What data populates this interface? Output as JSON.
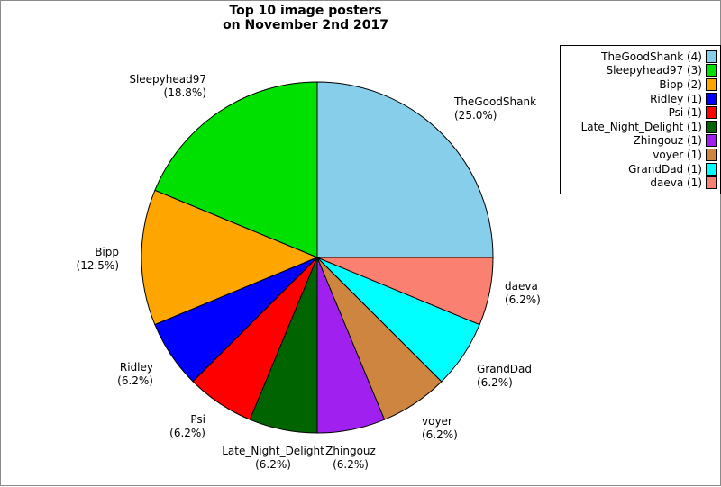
{
  "figure": {
    "title_line1": "Top 10 image posters",
    "title_line2": "on November 2nd 2017",
    "background_color": "#ffffff",
    "border_color": "#8a8a8a"
  },
  "chart_data": {
    "type": "pie",
    "title": "Top 10 image posters on November 2nd 2017",
    "total": 16,
    "start_angle_deg": 0,
    "direction": "counterclockwise",
    "legend_position": "upper right",
    "edge_color": "#000000",
    "slices": [
      {
        "name": "TheGoodShank",
        "count": 4,
        "percent": 25.0,
        "label": "TheGoodShank",
        "pct_label": "(25.0%)",
        "legend_label": "TheGoodShank (4)",
        "color": "#87CEEB"
      },
      {
        "name": "Sleepyhead97",
        "count": 3,
        "percent": 18.8,
        "label": "Sleepyhead97",
        "pct_label": "(18.8%)",
        "legend_label": "Sleepyhead97 (3)",
        "color": "#00E000"
      },
      {
        "name": "Bipp",
        "count": 2,
        "percent": 12.5,
        "label": "Bipp",
        "pct_label": "(12.5%)",
        "legend_label": "Bipp (2)",
        "color": "#FFA500"
      },
      {
        "name": "Ridley",
        "count": 1,
        "percent": 6.2,
        "label": "Ridley",
        "pct_label": "(6.2%)",
        "legend_label": "Ridley (1)",
        "color": "#0000FF"
      },
      {
        "name": "Psi",
        "count": 1,
        "percent": 6.2,
        "label": "Psi",
        "pct_label": "(6.2%)",
        "legend_label": "Psi (1)",
        "color": "#FF0000"
      },
      {
        "name": "Late_Night_Delight",
        "count": 1,
        "percent": 6.2,
        "label": "Late_Night_Delight",
        "pct_label": "(6.2%)",
        "legend_label": "Late_Night_Delight (1)",
        "color": "#006400"
      },
      {
        "name": "Zhingouz",
        "count": 1,
        "percent": 6.2,
        "label": "Zhingouz",
        "pct_label": "(6.2%)",
        "legend_label": "Zhingouz (1)",
        "color": "#A020F0"
      },
      {
        "name": "voyer",
        "count": 1,
        "percent": 6.2,
        "label": "voyer",
        "pct_label": "(6.2%)",
        "legend_label": "voyer (1)",
        "color": "#CD853F"
      },
      {
        "name": "GrandDad",
        "count": 1,
        "percent": 6.2,
        "label": "GrandDad",
        "pct_label": "(6.2%)",
        "legend_label": "GrandDad (1)",
        "color": "#00FFFF"
      },
      {
        "name": "daeva",
        "count": 1,
        "percent": 6.2,
        "label": "daeva",
        "pct_label": "(6.2%)",
        "legend_label": "daeva (1)",
        "color": "#FA8072"
      }
    ]
  }
}
